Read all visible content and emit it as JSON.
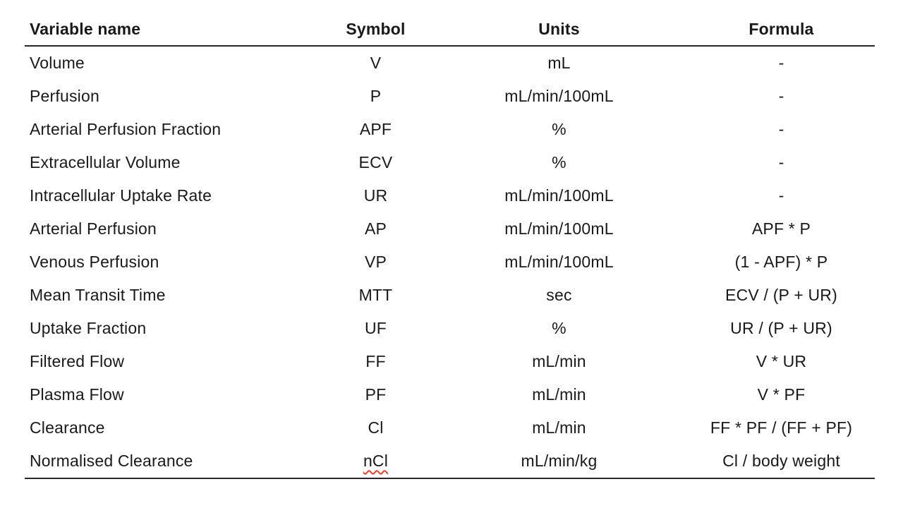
{
  "table": {
    "headers": {
      "variable_name": "Variable name",
      "symbol": "Symbol",
      "units": "Units",
      "formula": "Formula"
    },
    "rows": [
      {
        "name": "Volume",
        "symbol": "V",
        "units": "mL",
        "formula": "-"
      },
      {
        "name": "Perfusion",
        "symbol": "P",
        "units": "mL/min/100mL",
        "formula": "-"
      },
      {
        "name": "Arterial Perfusion Fraction",
        "symbol": "APF",
        "units": "%",
        "formula": "-"
      },
      {
        "name": "Extracellular Volume",
        "symbol": "ECV",
        "units": "%",
        "formula": "-"
      },
      {
        "name": "Intracellular Uptake Rate",
        "symbol": "UR",
        "units": "mL/min/100mL",
        "formula": "-"
      },
      {
        "name": "Arterial Perfusion",
        "symbol": "AP",
        "units": "mL/min/100mL",
        "formula": "APF * P"
      },
      {
        "name": "Venous Perfusion",
        "symbol": "VP",
        "units": "mL/min/100mL",
        "formula": "(1 - APF) * P"
      },
      {
        "name": "Mean Transit Time",
        "symbol": "MTT",
        "units": "sec",
        "formula": "ECV / (P + UR)"
      },
      {
        "name": "Uptake Fraction",
        "symbol": "UF",
        "units": "%",
        "formula": "UR / (P + UR)"
      },
      {
        "name": "Filtered Flow",
        "symbol": "FF",
        "units": "mL/min",
        "formula": "V * UR"
      },
      {
        "name": "Plasma Flow",
        "symbol": "PF",
        "units": "mL/min",
        "formula": "V * PF"
      },
      {
        "name": "Clearance",
        "symbol": "Cl",
        "units": "mL/min",
        "formula": "FF * PF / (FF + PF)"
      },
      {
        "name": "Normalised Clearance",
        "symbol": "nCl",
        "units": "mL/min/kg",
        "formula": "Cl / body weight"
      }
    ],
    "colors": {
      "text": "#191919",
      "rule": "#262626",
      "spellcheck_underline": "#e8442e"
    }
  }
}
